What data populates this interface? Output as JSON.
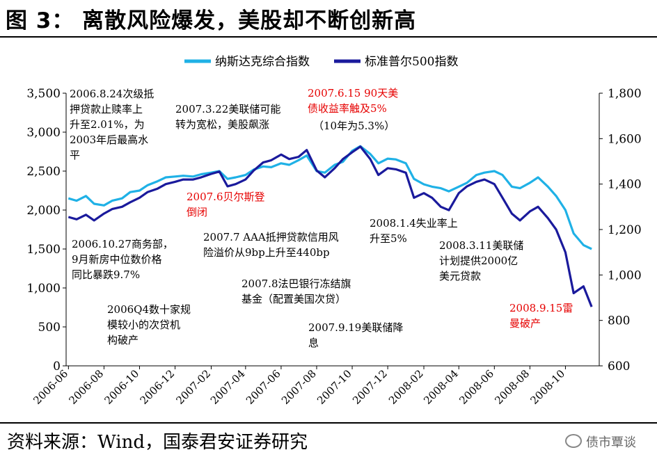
{
  "title": "图 3：  离散风险爆发，美股却不断创新高",
  "source": "资料来源：Wind，国泰君安证券研究",
  "watermark": "债市覃谈",
  "colors": {
    "nasdaq": "#1fb1e6",
    "sp500": "#1a1a9c",
    "red_annotation": "#e60000"
  },
  "chart_data": {
    "type": "line",
    "title": "",
    "xlabel": "",
    "ylabel_left": "",
    "ylabel_right": "",
    "legend_position": "top-center",
    "grid": false,
    "x_ticks": [
      "2006-06",
      "2006-08",
      "2006-10",
      "2006-12",
      "2007-02",
      "2007-04",
      "2007-06",
      "2007-08",
      "2007-10",
      "2007-12",
      "2008-02",
      "2008-04",
      "2008-06",
      "2008-08",
      "2008-10"
    ],
    "y_left": {
      "ylim": [
        0,
        3500
      ],
      "ticks": [
        "0",
        "500",
        "1,000",
        "1,500",
        "2,000",
        "2,500",
        "3,000",
        "3,500"
      ]
    },
    "y_right": {
      "ylim": [
        600,
        1800
      ],
      "ticks": [
        "600",
        "800",
        "1,000",
        "1,200",
        "1,400",
        "1,600",
        "1,800"
      ]
    },
    "series": [
      {
        "name": "纳斯达克综合指数",
        "axis": "left",
        "color": "#1fb1e6",
        "x": [
          "2006-06-01",
          "2006-06-15",
          "2006-07-01",
          "2006-07-15",
          "2006-08-01",
          "2006-08-15",
          "2006-09-01",
          "2006-09-15",
          "2006-10-01",
          "2006-10-15",
          "2006-11-01",
          "2006-11-15",
          "2006-12-01",
          "2006-12-15",
          "2007-01-01",
          "2007-01-15",
          "2007-02-01",
          "2007-02-15",
          "2007-03-01",
          "2007-03-15",
          "2007-04-01",
          "2007-04-15",
          "2007-05-01",
          "2007-05-15",
          "2007-06-01",
          "2007-06-15",
          "2007-07-01",
          "2007-07-15",
          "2007-08-01",
          "2007-08-15",
          "2007-09-01",
          "2007-09-15",
          "2007-10-01",
          "2007-10-15",
          "2007-11-01",
          "2007-11-15",
          "2007-12-01",
          "2007-12-15",
          "2008-01-01",
          "2008-01-15",
          "2008-02-01",
          "2008-02-15",
          "2008-03-01",
          "2008-03-15",
          "2008-04-01",
          "2008-04-15",
          "2008-05-01",
          "2008-05-15",
          "2008-06-01",
          "2008-06-15",
          "2008-07-01",
          "2008-07-15",
          "2008-08-01",
          "2008-08-15",
          "2008-09-01",
          "2008-09-15",
          "2008-10-01",
          "2008-10-15",
          "2008-11-01",
          "2008-11-15"
        ],
        "values": [
          2150,
          2120,
          2180,
          2080,
          2060,
          2120,
          2150,
          2230,
          2250,
          2320,
          2370,
          2420,
          2430,
          2440,
          2430,
          2460,
          2480,
          2500,
          2400,
          2420,
          2450,
          2520,
          2560,
          2550,
          2600,
          2580,
          2640,
          2700,
          2500,
          2480,
          2580,
          2620,
          2760,
          2820,
          2720,
          2600,
          2660,
          2650,
          2600,
          2400,
          2330,
          2300,
          2280,
          2240,
          2300,
          2350,
          2450,
          2480,
          2500,
          2450,
          2300,
          2280,
          2350,
          2420,
          2300,
          2180,
          2000,
          1700,
          1550,
          1500
        ]
      },
      {
        "name": "标准普尔500指数",
        "axis": "right",
        "color": "#1a1a9c",
        "x": [
          "2006-06-01",
          "2006-06-15",
          "2006-07-01",
          "2006-07-15",
          "2006-08-01",
          "2006-08-15",
          "2006-09-01",
          "2006-09-15",
          "2006-10-01",
          "2006-10-15",
          "2006-11-01",
          "2006-11-15",
          "2006-12-01",
          "2006-12-15",
          "2007-01-01",
          "2007-01-15",
          "2007-02-01",
          "2007-02-15",
          "2007-03-01",
          "2007-03-15",
          "2007-04-01",
          "2007-04-15",
          "2007-05-01",
          "2007-05-15",
          "2007-06-01",
          "2007-06-15",
          "2007-07-01",
          "2007-07-15",
          "2007-08-01",
          "2007-08-15",
          "2007-09-01",
          "2007-09-15",
          "2007-10-01",
          "2007-10-15",
          "2007-11-01",
          "2007-11-15",
          "2007-12-01",
          "2007-12-15",
          "2008-01-01",
          "2008-01-15",
          "2008-02-01",
          "2008-02-15",
          "2008-03-01",
          "2008-03-15",
          "2008-04-01",
          "2008-04-15",
          "2008-05-01",
          "2008-05-15",
          "2008-06-01",
          "2008-06-15",
          "2008-07-01",
          "2008-07-15",
          "2008-08-01",
          "2008-08-15",
          "2008-09-01",
          "2008-09-15",
          "2008-10-01",
          "2008-10-15",
          "2008-11-01",
          "2008-11-15"
        ],
        "values": [
          1255,
          1245,
          1265,
          1240,
          1270,
          1290,
          1300,
          1320,
          1340,
          1365,
          1380,
          1400,
          1410,
          1420,
          1420,
          1430,
          1445,
          1455,
          1390,
          1400,
          1420,
          1460,
          1495,
          1505,
          1530,
          1510,
          1520,
          1550,
          1460,
          1430,
          1470,
          1510,
          1540,
          1565,
          1510,
          1440,
          1470,
          1465,
          1450,
          1340,
          1360,
          1340,
          1300,
          1285,
          1360,
          1390,
          1410,
          1420,
          1400,
          1340,
          1270,
          1240,
          1280,
          1300,
          1250,
          1200,
          1100,
          920,
          950,
          860
        ]
      }
    ],
    "annotations": [
      {
        "text": "2006.8.24次级抵\n押贷款止赎率上\n升至2.01%，为\n2003年后最高水\n平",
        "color": "black"
      },
      {
        "text": "2007.3.22美联储可能\n转为宽松，美股飙涨",
        "color": "black"
      },
      {
        "text": "2007.6.15 90天美\n债收益率触及5%",
        "color": "red"
      },
      {
        "text": "（10年为5.3%）",
        "color": "black"
      },
      {
        "text": "2007.6贝尔斯登\n倒闭",
        "color": "red"
      },
      {
        "text": "2007.7 AAA抵押贷款信用风\n险溢价从9bp上升至440bp",
        "color": "black"
      },
      {
        "text": "2008.1.4失业率上\n升至5%",
        "color": "black"
      },
      {
        "text": "2006.10.27商务部，\n9月新房中位数价格\n同比暴跌9.7%",
        "color": "black"
      },
      {
        "text": "2008.3.11美联储\n计划提供2000亿\n美元贷款",
        "color": "black"
      },
      {
        "text": "2007.8法巴银行冻结旗\n基金（配置美国次贷）",
        "color": "black"
      },
      {
        "text": "2006Q4数十家规\n模较小的次贷机\n构破产",
        "color": "black"
      },
      {
        "text": "2007.9.19美联储降\n息",
        "color": "black"
      },
      {
        "text": "2008.9.15雷\n曼破产",
        "color": "red"
      }
    ]
  }
}
